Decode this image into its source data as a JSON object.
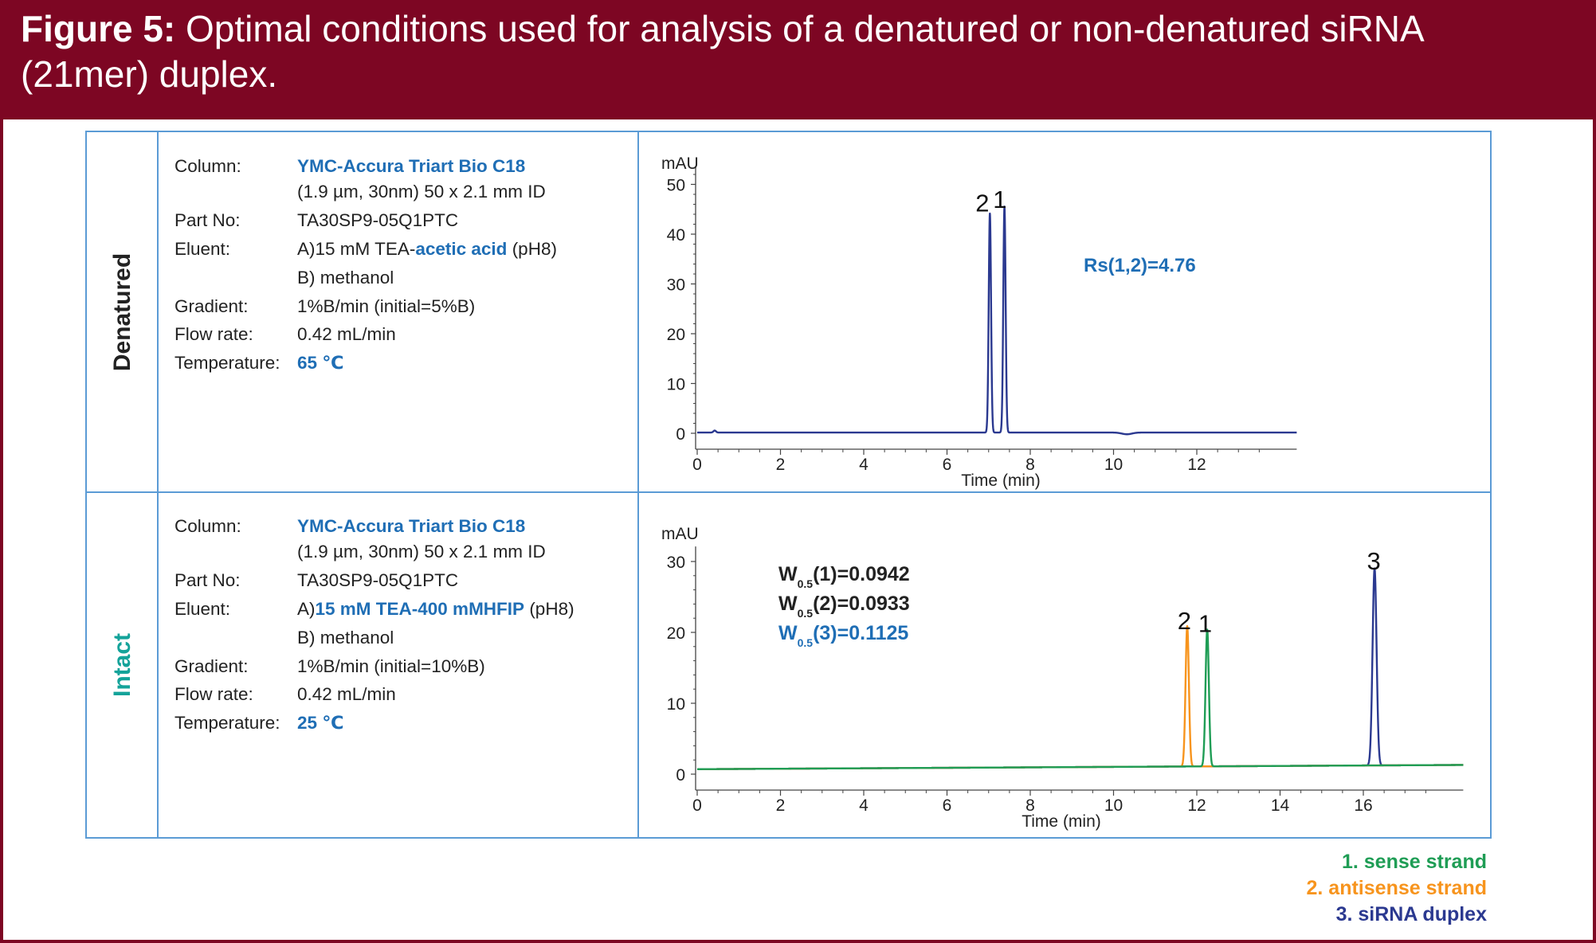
{
  "header": {
    "figure_label": "Figure 5:",
    "title_line1": "Optimal conditions used for analysis of a denatured or non-denatured siRNA",
    "title_line2": "(21mer) duplex."
  },
  "colors": {
    "header_bg": "#7d0623",
    "border_blue": "#5b9bd5",
    "highlight_blue": "#1f6eb5",
    "sense_green": "#1f9d55",
    "antisense_orange": "#f7941d",
    "duplex_navy": "#2b3990",
    "intact_teal": "#14a39a"
  },
  "rows": [
    {
      "label": "Denatured",
      "conditions": {
        "column_label": "Column:",
        "column_value": "YMC-Accura Triart Bio C18",
        "column_detail": "(1.9 µm, 30nm) 50 x 2.1 mm ID",
        "part_label": "Part No:",
        "part_value": "TA30SP9-05Q1PTC",
        "eluent_label": "Eluent:",
        "eluent_a_prefix": "A)15 mM TEA-",
        "eluent_a_highlight": "acetic acid",
        "eluent_a_suffix": " (pH8)",
        "eluent_b": "B) methanol",
        "gradient_label": "Gradient:",
        "gradient_value": "1%B/min (initial=5%B)",
        "flow_label": "Flow rate:",
        "flow_value": "0.42 mL/min",
        "temp_label": "Temperature:",
        "temp_value": "65 ℃"
      }
    },
    {
      "label": "Intact",
      "conditions": {
        "column_label": "Column:",
        "column_value": "YMC-Accura Triart Bio C18",
        "column_detail": "(1.9 µm, 30nm) 50 x 2.1 mm ID",
        "part_label": "Part No:",
        "part_value": "TA30SP9-05Q1PTC",
        "eluent_label": "Eluent:",
        "eluent_a_prefix": "A)",
        "eluent_a_highlight": "15 mM TEA-400 mMHFIP",
        "eluent_a_suffix": " (pH8)",
        "eluent_b": "B) methanol",
        "gradient_label": "Gradient:",
        "gradient_value": "1%B/min (initial=10%B)",
        "flow_label": "Flow rate:",
        "flow_value": "0.42 mL/min",
        "temp_label": "Temperature:",
        "temp_value": "25 ℃"
      }
    }
  ],
  "chart_data": [
    {
      "type": "line",
      "title": "Denatured",
      "xlabel": "Time (min)",
      "ylabel": "mAU",
      "xlim": [
        0,
        14.4
      ],
      "ylim": [
        -1,
        52
      ],
      "x_ticks": [
        0,
        2,
        4,
        6,
        8,
        10,
        12
      ],
      "y_ticks": [
        0,
        10,
        20,
        30,
        40,
        50
      ],
      "annotation": "Rs(1,2)=4.76",
      "peak_labels": [
        {
          "text": "2",
          "x": 6.85,
          "y": 46.5
        },
        {
          "text": "1",
          "x": 7.27,
          "y": 47.2
        }
      ],
      "series": [
        {
          "name": "denatured",
          "color": "#2b3990",
          "baseline": 0.15,
          "peaks": [
            {
              "rt": 7.03,
              "height": 44.0,
              "width": 0.028
            },
            {
              "rt": 7.38,
              "height": 45.4,
              "width": 0.028
            }
          ],
          "blips": [
            {
              "rt": 0.42,
              "height": 0.4,
              "width": 0.03
            },
            {
              "rt": 10.32,
              "height": -0.35,
              "width": 0.12
            }
          ]
        }
      ]
    },
    {
      "type": "line",
      "title": "Intact",
      "xlabel": "Time (min)",
      "ylabel": "mAU",
      "xlim": [
        0,
        18.4
      ],
      "ylim": [
        -1,
        31
      ],
      "x_ticks": [
        0,
        2,
        4,
        6,
        8,
        10,
        12,
        14,
        16
      ],
      "y_ticks": [
        0,
        10,
        20,
        30
      ],
      "annotations": [
        {
          "main": "W",
          "sub": "0.5",
          "rest": "(1)=0.0942",
          "color": "#222222"
        },
        {
          "main": "W",
          "sub": "0.5",
          "rest": "(2)=0.0933",
          "color": "#222222"
        },
        {
          "main": "W",
          "sub": "0.5",
          "rest": "(3)=0.1125",
          "color": "#1f6eb5"
        }
      ],
      "peak_labels": [
        {
          "text": "2",
          "x": 11.7,
          "y": 21.8
        },
        {
          "text": "1",
          "x": 12.2,
          "y": 21.4
        },
        {
          "text": "3",
          "x": 16.25,
          "y": 30.2
        }
      ],
      "series": [
        {
          "name": "siRNA duplex",
          "color": "#2b3990",
          "baseline_start": 0.7,
          "baseline_end": 1.3,
          "peaks": [
            {
              "rt": 16.27,
              "height": 27.8,
              "width": 0.048
            }
          ]
        },
        {
          "name": "antisense strand",
          "color": "#f7941d",
          "baseline_start": 0.7,
          "baseline_end": 1.3,
          "peaks": [
            {
              "rt": 11.77,
              "height": 19.8,
              "width": 0.04
            }
          ]
        },
        {
          "name": "sense strand",
          "color": "#1f9d55",
          "baseline_start": 0.7,
          "baseline_end": 1.3,
          "peaks": [
            {
              "rt": 12.25,
              "height": 19.3,
              "width": 0.04
            }
          ]
        }
      ]
    }
  ],
  "legend": [
    {
      "text": "1.  sense strand",
      "color": "#1f9d55"
    },
    {
      "text": "2.  antisense strand",
      "color": "#f7941d"
    },
    {
      "text": "3.  siRNA duplex",
      "color": "#2b3990"
    }
  ]
}
